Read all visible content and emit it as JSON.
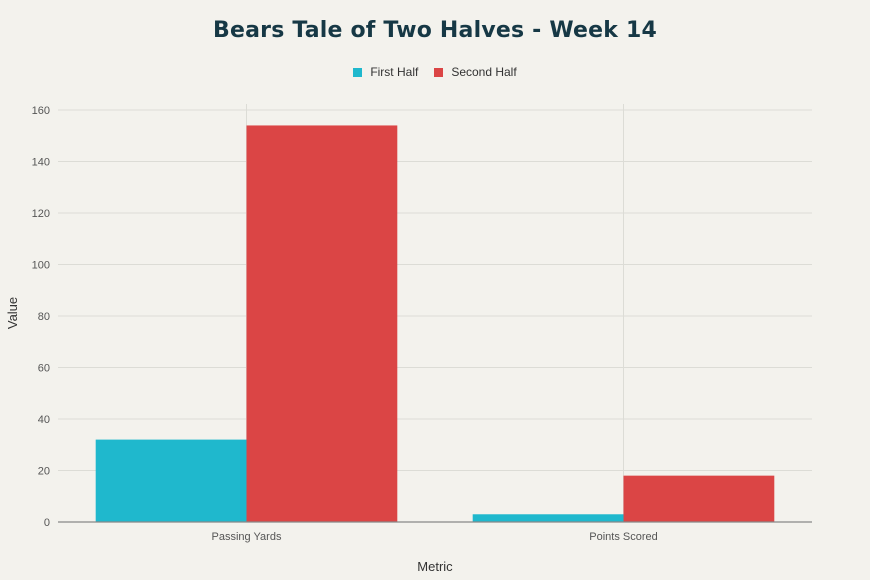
{
  "chart_data": {
    "type": "bar",
    "title": "Bears Tale of Two Halves - Week 14",
    "xlabel": "Metric",
    "ylabel": "Value",
    "categories": [
      "Passing Yards",
      "Points Scored"
    ],
    "series": [
      {
        "name": "First Half",
        "values": [
          32,
          3
        ],
        "color": "#1fb8cd"
      },
      {
        "name": "Second Half",
        "values": [
          154,
          18
        ],
        "color": "#db4545"
      }
    ],
    "ylim": [
      0,
      160
    ],
    "yticks": [
      0,
      20,
      40,
      60,
      80,
      100,
      120,
      140,
      160
    ],
    "grid": true,
    "legend_position": "top-center"
  }
}
